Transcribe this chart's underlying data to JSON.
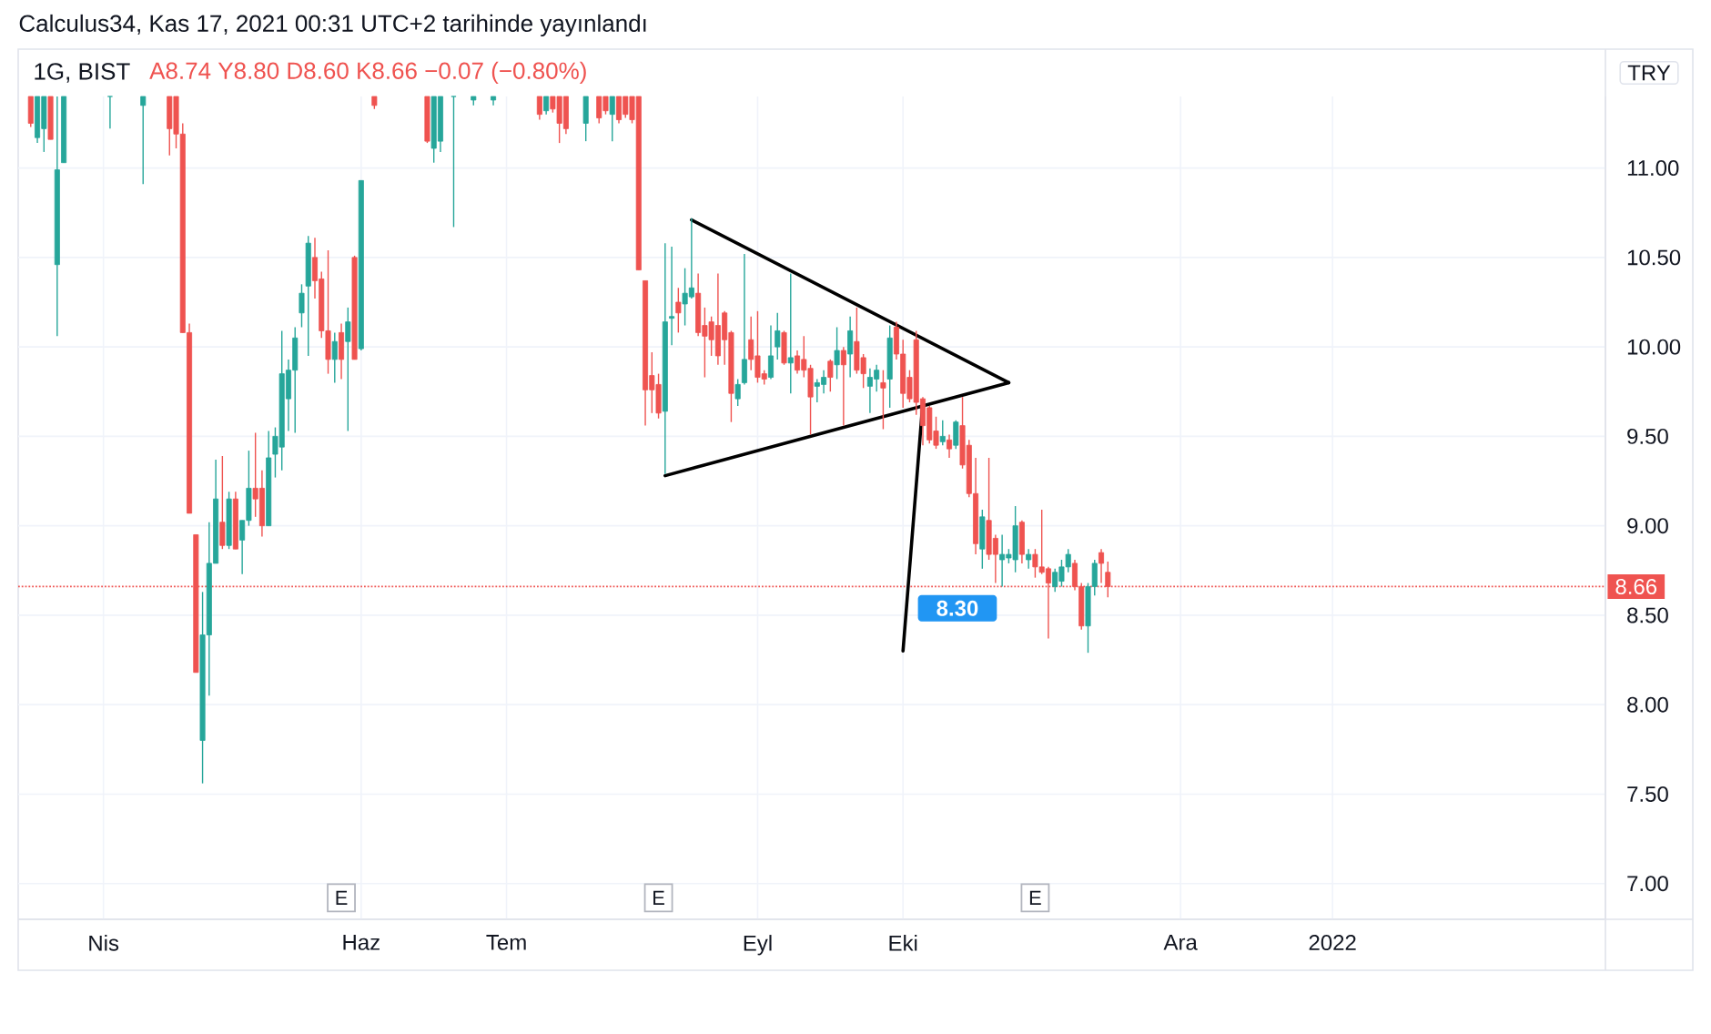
{
  "chart_data": {
    "type": "candlestick",
    "title": "1G, BIST",
    "subtitle": "A8.74 Y8.80 D8.60 K8.66 −0.07 (−0.80%)",
    "ylabel": "TRY",
    "annotations": [
      "Calculus34, Kas 17, 2021 00:31 UTC+2 tarihinde yayınlandı"
    ],
    "categories": [
      null,
      null,
      null,
      null,
      null,
      null,
      null,
      null,
      null,
      null,
      null,
      "Nis",
      null,
      null,
      null,
      null,
      null,
      null,
      null,
      null,
      null,
      null,
      null,
      null,
      null,
      null,
      null,
      null,
      null,
      null,
      null,
      null,
      null,
      null,
      null,
      null,
      null,
      null,
      null,
      null,
      null,
      null,
      null,
      null,
      null,
      null,
      null,
      null,
      null,
      null,
      "Haz",
      null,
      null,
      null,
      null,
      null,
      null,
      null,
      null,
      null,
      null,
      null,
      null,
      null,
      null,
      null,
      null,
      null,
      null,
      null,
      null,
      null,
      "Tem",
      null,
      null,
      null,
      null,
      null,
      null,
      null,
      null,
      null,
      null,
      null,
      null,
      null,
      null,
      null,
      null,
      null,
      null,
      null,
      null,
      null,
      null,
      null,
      null,
      null,
      null,
      null,
      null,
      null,
      null,
      null,
      null,
      null,
      null,
      null,
      null,
      null,
      "Eyl",
      null,
      null,
      null,
      null,
      null,
      null,
      null,
      null,
      null,
      null,
      null,
      null,
      null,
      null,
      null,
      null,
      null,
      null,
      null,
      null,
      null,
      "Eki",
      null,
      null,
      null,
      null,
      null,
      null,
      null,
      null,
      null,
      null,
      null,
      null,
      null,
      null,
      null,
      null,
      null,
      null,
      null,
      null,
      null,
      null,
      null,
      null,
      null,
      null,
      null,
      null,
      null,
      null,
      null,
      null,
      null,
      null,
      null,
      null,
      null,
      null,
      null,
      null,
      null,
      "Ara",
      null,
      null,
      null,
      null,
      null,
      null,
      null,
      null,
      null,
      null,
      null,
      null,
      null,
      null,
      null,
      null,
      null,
      null,
      null,
      null,
      null,
      null,
      "2022",
      null,
      null,
      null,
      null,
      null,
      null,
      null,
      null,
      null,
      null,
      null,
      null,
      null,
      null,
      null,
      null,
      null,
      null,
      null,
      null,
      null,
      null,
      null,
      null,
      null,
      null,
      null,
      null,
      null,
      null,
      null,
      null,
      null,
      null,
      null,
      null,
      null,
      null,
      null,
      null,
      null
    ],
    "ohlc": [
      [
        11.4,
        11.4,
        11.23,
        11.25
      ],
      [
        11.17,
        11.4,
        11.14,
        11.4
      ],
      [
        11.22,
        11.4,
        11.09,
        11.4
      ],
      [
        11.4,
        11.4,
        11.16,
        11.16
      ],
      [
        10.46,
        11.4,
        10.06,
        10.99
      ],
      [
        11.03,
        11.4,
        11.03,
        11.4
      ],
      null,
      null,
      null,
      null,
      null,
      null,
      [
        11.4,
        11.4,
        11.22,
        11.4
      ],
      null,
      null,
      null,
      null,
      [
        11.35,
        11.4,
        10.91,
        11.4
      ],
      null,
      null,
      null,
      [
        11.4,
        11.4,
        11.07,
        11.22
      ],
      [
        11.4,
        11.4,
        11.11,
        11.19
      ],
      [
        11.19,
        11.25,
        10.08,
        10.08
      ],
      [
        10.08,
        10.13,
        9.07,
        9.07
      ],
      [
        8.95,
        8.95,
        8.18,
        8.18
      ],
      [
        7.8,
        8.63,
        7.56,
        8.39
      ],
      [
        8.39,
        9.02,
        8.05,
        8.79
      ],
      [
        8.79,
        9.37,
        8.79,
        9.15
      ],
      [
        9.02,
        9.39,
        8.87,
        8.89
      ],
      [
        8.89,
        9.19,
        8.87,
        9.15
      ],
      [
        9.15,
        9.19,
        8.87,
        8.87
      ],
      [
        8.92,
        9.03,
        8.73,
        9.03
      ],
      [
        9.03,
        9.42,
        9.0,
        9.21
      ],
      [
        9.21,
        9.52,
        9.05,
        9.15
      ],
      [
        9.21,
        9.31,
        8.94,
        9.0
      ],
      [
        9.0,
        9.53,
        9.0,
        9.38
      ],
      [
        9.4,
        9.55,
        9.27,
        9.5
      ],
      [
        9.44,
        10.09,
        9.31,
        9.85
      ],
      [
        9.71,
        9.93,
        9.53,
        9.87
      ],
      [
        9.87,
        10.11,
        9.52,
        10.05
      ],
      [
        10.19,
        10.35,
        10.11,
        10.3
      ],
      [
        10.34,
        10.62,
        9.95,
        10.58
      ],
      [
        10.5,
        10.61,
        10.27,
        10.37
      ],
      [
        10.38,
        10.42,
        10.05,
        10.09
      ],
      [
        10.09,
        10.54,
        9.85,
        9.93
      ],
      [
        9.93,
        10.08,
        9.8,
        10.03
      ],
      [
        10.08,
        10.13,
        9.82,
        9.93
      ],
      [
        10.03,
        10.22,
        9.53,
        10.14
      ],
      [
        10.5,
        10.51,
        9.93,
        9.93
      ],
      [
        9.99,
        10.93,
        9.98,
        10.93
      ],
      null,
      [
        11.4,
        11.4,
        11.33,
        11.35
      ],
      null,
      null,
      null,
      null,
      null,
      null,
      null,
      [
        11.4,
        11.4,
        11.14,
        11.15
      ],
      [
        11.11,
        11.4,
        11.03,
        11.4
      ],
      [
        11.15,
        11.4,
        11.09,
        11.4
      ],
      null,
      [
        11.4,
        11.4,
        10.67,
        11.4
      ],
      null,
      null,
      [
        11.38,
        11.4,
        11.35,
        11.4
      ],
      null,
      null,
      [
        11.38,
        11.4,
        11.35,
        11.4
      ],
      null,
      null,
      null,
      null,
      null,
      null,
      [
        11.4,
        11.4,
        11.27,
        11.3
      ],
      [
        11.32,
        11.4,
        11.3,
        11.4
      ],
      [
        11.4,
        11.4,
        11.31,
        11.33
      ],
      [
        11.4,
        11.4,
        11.14,
        11.25
      ],
      [
        11.4,
        11.4,
        11.19,
        11.22
      ],
      null,
      null,
      [
        11.25,
        11.4,
        11.15,
        11.4
      ],
      null,
      [
        11.4,
        11.4,
        11.25,
        11.28
      ],
      [
        11.4,
        11.4,
        11.3,
        11.32
      ],
      [
        11.3,
        11.4,
        11.15,
        11.4
      ],
      [
        11.4,
        11.4,
        11.25,
        11.27
      ],
      [
        11.4,
        11.4,
        11.28,
        11.3
      ],
      [
        11.4,
        11.4,
        11.25,
        11.27
      ],
      [
        11.4,
        11.4,
        10.43,
        10.43
      ],
      [
        10.37,
        10.37,
        9.56,
        9.76
      ],
      [
        9.84,
        9.97,
        9.63,
        9.76
      ],
      [
        9.79,
        9.85,
        9.6,
        9.63
      ],
      [
        9.64,
        10.58,
        9.29,
        10.14
      ],
      [
        10.16,
        10.56,
        10.01,
        10.17
      ],
      [
        10.25,
        10.33,
        10.08,
        10.19
      ],
      [
        10.24,
        10.44,
        10.12,
        10.3
      ],
      [
        10.28,
        10.72,
        10.27,
        10.33
      ],
      [
        10.3,
        10.41,
        10.06,
        10.08
      ],
      [
        10.12,
        10.22,
        9.83,
        10.06
      ],
      [
        10.14,
        10.17,
        9.95,
        10.04
      ],
      [
        10.12,
        10.41,
        9.9,
        9.95
      ],
      [
        10.19,
        10.2,
        9.9,
        10.04
      ],
      [
        10.08,
        10.09,
        9.58,
        9.74
      ],
      [
        9.71,
        9.82,
        9.67,
        9.79
      ],
      [
        9.8,
        10.52,
        9.79,
        9.93
      ],
      [
        10.04,
        10.17,
        9.87,
        9.93
      ],
      [
        9.95,
        10.2,
        9.8,
        9.83
      ],
      [
        9.85,
        9.87,
        9.79,
        9.82
      ],
      [
        9.83,
        10.12,
        9.82,
        9.95
      ],
      [
        10.0,
        10.19,
        9.93,
        10.09
      ],
      [
        10.08,
        10.09,
        9.9,
        9.91
      ],
      [
        9.91,
        10.41,
        9.74,
        9.94
      ],
      [
        9.95,
        9.98,
        9.85,
        9.87
      ],
      [
        9.93,
        10.06,
        9.83,
        9.87
      ],
      [
        9.88,
        9.9,
        9.51,
        9.72
      ],
      [
        9.78,
        9.82,
        9.69,
        9.8
      ],
      [
        9.79,
        9.87,
        9.74,
        9.83
      ],
      [
        9.92,
        9.93,
        9.75,
        9.83
      ],
      [
        9.9,
        10.11,
        9.82,
        9.98
      ],
      [
        9.98,
        10.0,
        9.56,
        9.9
      ],
      [
        9.96,
        10.17,
        9.83,
        10.09
      ],
      [
        10.03,
        10.22,
        9.85,
        9.87
      ],
      [
        9.94,
        9.96,
        9.77,
        9.85
      ],
      [
        9.78,
        9.88,
        9.63,
        9.83
      ],
      [
        9.82,
        9.9,
        9.75,
        9.87
      ],
      [
        9.8,
        9.87,
        9.54,
        9.77
      ],
      [
        9.82,
        10.12,
        9.66,
        10.05
      ],
      [
        10.11,
        10.14,
        9.93,
        9.96
      ],
      [
        9.96,
        10.04,
        9.66,
        9.74
      ],
      [
        9.83,
        9.87,
        9.69,
        9.71
      ],
      [
        10.04,
        10.09,
        9.62,
        9.69
      ],
      [
        9.71,
        9.72,
        9.45,
        9.56
      ],
      [
        9.66,
        9.67,
        9.46,
        9.48
      ],
      [
        9.53,
        9.61,
        9.43,
        9.45
      ],
      [
        9.47,
        9.59,
        9.45,
        9.5
      ],
      [
        9.48,
        9.51,
        9.38,
        9.43
      ],
      [
        9.45,
        9.59,
        9.43,
        9.58
      ],
      [
        9.56,
        9.72,
        9.32,
        9.34
      ],
      [
        9.45,
        9.48,
        9.16,
        9.18
      ],
      [
        9.18,
        9.38,
        8.84,
        8.9
      ],
      [
        8.87,
        9.09,
        8.76,
        9.05
      ],
      [
        9.03,
        9.38,
        8.81,
        8.84
      ],
      [
        8.93,
        8.95,
        8.68,
        8.84
      ],
      [
        8.81,
        8.95,
        8.66,
        8.84
      ],
      [
        8.82,
        8.87,
        8.79,
        8.84
      ],
      [
        8.81,
        9.11,
        8.74,
        9.0
      ],
      [
        9.02,
        9.03,
        8.79,
        8.84
      ],
      [
        8.81,
        8.87,
        8.76,
        8.84
      ],
      [
        8.84,
        8.87,
        8.71,
        8.77
      ],
      [
        8.77,
        9.09,
        8.73,
        8.74
      ],
      [
        8.76,
        8.77,
        8.37,
        8.68
      ],
      [
        8.66,
        8.76,
        8.63,
        8.74
      ],
      [
        8.69,
        8.81,
        8.66,
        8.77
      ],
      [
        8.77,
        8.87,
        8.74,
        8.84
      ],
      [
        8.79,
        8.81,
        8.64,
        8.66
      ],
      [
        8.66,
        8.68,
        8.42,
        8.44
      ],
      [
        8.44,
        8.68,
        8.29,
        8.66
      ],
      [
        8.66,
        8.81,
        8.61,
        8.79
      ],
      [
        8.85,
        8.87,
        8.68,
        8.79
      ],
      [
        8.74,
        8.8,
        8.6,
        8.66
      ],
      null,
      null,
      null,
      null,
      null,
      null,
      null,
      null,
      null,
      null,
      null,
      null,
      null,
      null,
      null,
      null,
      null,
      null,
      null,
      null,
      null,
      null,
      null,
      null,
      null,
      null,
      null,
      null,
      null,
      null,
      null,
      null,
      null,
      null,
      null,
      null,
      null,
      null,
      null,
      null,
      null,
      null,
      null,
      null,
      null,
      null,
      null,
      null,
      null,
      null,
      null,
      null,
      null,
      null,
      null,
      null,
      null,
      null,
      null,
      null,
      null,
      null,
      null,
      null,
      null,
      null,
      null,
      null,
      null,
      null,
      null,
      null,
      null,
      null,
      null
    ],
    "colors": [
      "#ef5350",
      "#26a69a",
      "#26a69a",
      "#ef5350",
      "#26a69a",
      "#26a69a",
      null,
      null,
      null,
      null,
      null,
      null,
      "#26a69a",
      null,
      null,
      null,
      null,
      "#26a69a",
      null,
      null,
      null,
      "#ef5350",
      "#ef5350",
      "#ef5350",
      "#ef5350",
      "#ef5350",
      "#26a69a",
      "#26a69a",
      "#26a69a",
      "#ef5350",
      "#26a69a",
      "#ef5350",
      "#26a69a",
      "#26a69a",
      "#ef5350",
      "#ef5350",
      "#26a69a",
      "#26a69a",
      "#26a69a",
      "#26a69a",
      "#26a69a",
      "#26a69a",
      "#26a69a",
      "#ef5350",
      "#ef5350",
      "#ef5350",
      "#26a69a",
      "#ef5350",
      "#26a69a",
      "#ef5350",
      "#26a69a",
      null,
      "#ef5350",
      null,
      null,
      null,
      null,
      null,
      null,
      null,
      "#ef5350",
      "#26a69a",
      "#26a69a",
      null,
      "#26a69a",
      null,
      null,
      "#26a69a",
      null,
      null,
      "#26a69a",
      null,
      null,
      null,
      null,
      null,
      null,
      "#ef5350",
      "#26a69a",
      "#ef5350",
      "#ef5350",
      "#ef5350",
      null,
      null,
      "#26a69a",
      null,
      "#ef5350",
      "#ef5350",
      "#26a69a",
      "#ef5350",
      "#ef5350",
      "#ef5350",
      "#ef5350",
      "#ef5350",
      "#ef5350",
      "#ef5350",
      "#26a69a",
      "#26a69a",
      "#ef5350",
      "#26a69a",
      "#26a69a",
      "#ef5350",
      "#ef5350",
      "#ef5350",
      "#ef5350",
      "#ef5350",
      "#ef5350",
      "#26a69a",
      "#26a69a",
      "#ef5350",
      "#ef5350",
      "#ef5350",
      "#26a69a",
      "#26a69a",
      "#ef5350",
      "#26a69a",
      "#ef5350",
      "#ef5350",
      "#ef5350",
      "#26a69a",
      "#26a69a",
      "#ef5350",
      "#26a69a",
      "#ef5350",
      "#26a69a",
      "#ef5350",
      "#ef5350",
      "#26a69a",
      "#26a69a",
      "#ef5350",
      "#26a69a",
      "#ef5350",
      "#ef5350",
      "#ef5350",
      "#ef5350",
      "#ef5350",
      "#ef5350",
      "#ef5350",
      "#26a69a",
      "#ef5350",
      "#26a69a",
      "#ef5350",
      "#ef5350",
      "#ef5350",
      "#26a69a",
      "#ef5350",
      "#ef5350",
      "#26a69a",
      "#26a69a",
      "#26a69a",
      "#ef5350",
      "#26a69a",
      "#ef5350",
      "#ef5350",
      "#ef5350",
      "#26a69a",
      "#26a69a",
      "#26a69a",
      "#ef5350",
      "#ef5350",
      "#26a69a",
      "#26a69a",
      "#ef5350",
      "#ef5350",
      null,
      null,
      null,
      null,
      null,
      null,
      null,
      null,
      null,
      null,
      null,
      null,
      null,
      null,
      null,
      null,
      null,
      null,
      null,
      null,
      null,
      null,
      null,
      null,
      null,
      null,
      null,
      null,
      null,
      null,
      null,
      null,
      null,
      null,
      null,
      null,
      null,
      null,
      null,
      null,
      null,
      null,
      null,
      null,
      null,
      null,
      null,
      null,
      null,
      null,
      null,
      null,
      null,
      null,
      null,
      null,
      null,
      null,
      null,
      null,
      null,
      null,
      null,
      null,
      null,
      null,
      null,
      null,
      null,
      null,
      null,
      null,
      null,
      null,
      null
    ],
    "series": [
      {
        "type": "line",
        "color": "#000000",
        "values": [
          null,
          null,
          null,
          null,
          null,
          null,
          null,
          null,
          null,
          null,
          null,
          null,
          null,
          null,
          null,
          null,
          null,
          null,
          null,
          null,
          null,
          null,
          null,
          null,
          null,
          null,
          null,
          null,
          null,
          null,
          null,
          null,
          null,
          null,
          null,
          null,
          null,
          null,
          null,
          null,
          null,
          null,
          null,
          null,
          null,
          null,
          null,
          null,
          null,
          null,
          null,
          null,
          null,
          null,
          null,
          null,
          null,
          null,
          null,
          null,
          null,
          null,
          null,
          null,
          null,
          null,
          null,
          null,
          null,
          null,
          null,
          null,
          null,
          null,
          null,
          null,
          null,
          null,
          null,
          null,
          null,
          null,
          null,
          null,
          null,
          null,
          null,
          null,
          null,
          null,
          null,
          null,
          null,
          null,
          null,
          null,
          null,
          null,
          null,
          null,
          10.71,
          null,
          null,
          null,
          null,
          null,
          null,
          null,
          null,
          null,
          null,
          null,
          null,
          null,
          null,
          null,
          null,
          null,
          null,
          null,
          null,
          null,
          null,
          null,
          null,
          null,
          null,
          null,
          null,
          null,
          null,
          null,
          null,
          null,
          null,
          null,
          null,
          null,
          null,
          null,
          null,
          null,
          null,
          null,
          null,
          null,
          null,
          null,
          9.8,
          null,
          null,
          null,
          null,
          null,
          null,
          null,
          null,
          null,
          null,
          null,
          null,
          null,
          null,
          null,
          null,
          null,
          null,
          null,
          null,
          null,
          null,
          null,
          null,
          null,
          null,
          null,
          null,
          null,
          null,
          null,
          null,
          null,
          null,
          null,
          null,
          null,
          null,
          null,
          null,
          null,
          null,
          null,
          null,
          null,
          null,
          null,
          null,
          null,
          null,
          null,
          null,
          null,
          null,
          null,
          null,
          null,
          null,
          null,
          null,
          null,
          null,
          null,
          null,
          null,
          null,
          null,
          null,
          null,
          null,
          null,
          null,
          null,
          null,
          null,
          null,
          null,
          null,
          null,
          null,
          null,
          null,
          null,
          null,
          null,
          null,
          null,
          null,
          null,
          null
        ]
      },
      {
        "type": "line",
        "color": "#000000",
        "values": [
          null,
          null,
          null,
          null,
          null,
          null,
          null,
          null,
          null,
          null,
          null,
          null,
          null,
          null,
          null,
          null,
          null,
          null,
          null,
          null,
          null,
          null,
          null,
          null,
          null,
          null,
          null,
          null,
          null,
          null,
          null,
          null,
          null,
          null,
          null,
          null,
          null,
          null,
          null,
          null,
          null,
          null,
          null,
          null,
          null,
          null,
          null,
          null,
          null,
          null,
          null,
          null,
          null,
          null,
          null,
          null,
          null,
          null,
          null,
          null,
          null,
          null,
          null,
          null,
          null,
          null,
          null,
          null,
          null,
          null,
          null,
          null,
          null,
          null,
          null,
          null,
          null,
          null,
          null,
          null,
          null,
          null,
          null,
          null,
          null,
          null,
          null,
          null,
          null,
          null,
          null,
          null,
          null,
          null,
          null,
          null,
          9.28,
          null,
          null,
          null,
          null,
          null,
          null,
          null,
          null,
          null,
          null,
          null,
          null,
          null,
          null,
          null,
          null,
          null,
          null,
          null,
          null,
          null,
          null,
          null,
          null,
          null,
          null,
          null,
          null,
          null,
          null,
          null,
          null,
          null,
          null,
          null,
          null,
          null,
          null,
          null,
          null,
          null,
          null,
          null,
          null,
          null,
          null,
          null,
          null,
          null,
          null,
          null,
          9.8,
          null,
          null,
          null,
          null,
          null,
          null,
          null,
          null,
          null,
          null,
          null,
          null,
          null,
          null,
          null,
          null,
          null,
          null,
          null,
          null,
          null,
          null,
          null,
          null,
          null,
          null,
          null,
          null,
          null,
          null,
          null,
          null,
          null,
          null,
          null,
          null,
          null,
          null,
          null,
          null,
          null,
          null,
          null,
          null,
          null,
          null,
          null,
          null,
          null,
          null,
          null,
          null,
          null,
          null,
          null,
          null,
          null,
          null,
          null,
          null,
          null,
          null,
          null,
          null,
          null,
          null,
          null,
          null,
          null,
          null,
          null,
          null,
          null,
          null,
          null,
          null,
          null,
          null,
          null,
          null,
          null,
          null,
          null,
          null,
          null,
          null,
          null,
          null,
          null,
          null
        ]
      },
      {
        "type": "line",
        "color": "#000000",
        "values": [
          null,
          null,
          null,
          null,
          null,
          null,
          null,
          null,
          null,
          null,
          null,
          null,
          null,
          null,
          null,
          null,
          null,
          null,
          null,
          null,
          null,
          null,
          null,
          null,
          null,
          null,
          null,
          null,
          null,
          null,
          null,
          null,
          null,
          null,
          null,
          null,
          null,
          null,
          null,
          null,
          null,
          null,
          null,
          null,
          null,
          null,
          null,
          null,
          null,
          null,
          null,
          null,
          null,
          null,
          null,
          null,
          null,
          null,
          null,
          null,
          null,
          null,
          null,
          null,
          null,
          null,
          null,
          null,
          null,
          null,
          null,
          null,
          null,
          null,
          null,
          null,
          null,
          null,
          null,
          null,
          null,
          null,
          null,
          null,
          null,
          null,
          null,
          null,
          null,
          null,
          null,
          null,
          null,
          null,
          null,
          null,
          null,
          null,
          null,
          null,
          null,
          null,
          null,
          null,
          null,
          null,
          null,
          null,
          null,
          null,
          null,
          null,
          null,
          null,
          null,
          null,
          null,
          null,
          null,
          null,
          null,
          null,
          null,
          null,
          null,
          null,
          null,
          null,
          null,
          null,
          null,
          null,
          8.3,
          null,
          null,
          9.69,
          null,
          null,
          null,
          null,
          null,
          null,
          null,
          null,
          null,
          null,
          null,
          null,
          null,
          null,
          null,
          null,
          null,
          null,
          null,
          null,
          null,
          null,
          null,
          null,
          null,
          null,
          null,
          null,
          null,
          null,
          null,
          null,
          null,
          null,
          null,
          null,
          null,
          null,
          null,
          null,
          null,
          null,
          null,
          null,
          null,
          null,
          null,
          null,
          null,
          null,
          null,
          null,
          null,
          null,
          null,
          null,
          null,
          null,
          null,
          null,
          null,
          null,
          null,
          null,
          null,
          null,
          null,
          null,
          null,
          null,
          null,
          null,
          null,
          null,
          null,
          null,
          null,
          null,
          null,
          null,
          null,
          null,
          null,
          null,
          null,
          null,
          null,
          null,
          null,
          null,
          null,
          null,
          null,
          null,
          null,
          null,
          null,
          null,
          null,
          null,
          null,
          null,
          null
        ],
        "value_labels": [
          null,
          null,
          null,
          null,
          null,
          null,
          null,
          null,
          null,
          null,
          null,
          null,
          null,
          null,
          null,
          null,
          null,
          null,
          null,
          null,
          null,
          null,
          null,
          null,
          null,
          null,
          null,
          null,
          null,
          null,
          null,
          null,
          null,
          null,
          null,
          null,
          null,
          null,
          null,
          null,
          null,
          null,
          null,
          null,
          null,
          null,
          null,
          null,
          null,
          null,
          null,
          null,
          null,
          null,
          null,
          null,
          null,
          null,
          null,
          null,
          null,
          null,
          null,
          null,
          null,
          null,
          null,
          null,
          null,
          null,
          null,
          null,
          null,
          null,
          null,
          null,
          null,
          null,
          null,
          null,
          null,
          null,
          null,
          null,
          null,
          null,
          null,
          null,
          null,
          null,
          null,
          null,
          null,
          null,
          null,
          null,
          null,
          null,
          null,
          null,
          null,
          null,
          null,
          null,
          null,
          null,
          null,
          null,
          null,
          null,
          null,
          null,
          null,
          null,
          null,
          null,
          null,
          null,
          null,
          null,
          null,
          null,
          null,
          null,
          null,
          null,
          null,
          null,
          null,
          null,
          null,
          null,
          "8.30",
          null,
          null,
          null,
          null,
          null,
          null,
          null,
          null,
          null,
          null,
          null,
          null,
          null,
          null,
          null,
          null,
          null,
          null,
          null,
          null,
          null,
          null,
          null,
          null,
          null,
          null,
          null,
          null,
          null,
          null,
          null,
          null,
          null,
          null,
          null,
          null,
          null,
          null,
          null,
          null,
          null,
          null,
          null,
          null,
          null,
          null,
          null,
          null,
          null,
          null,
          null,
          null,
          null,
          null,
          null,
          null,
          null,
          null,
          null,
          null,
          null,
          null,
          null,
          null,
          null,
          null,
          null,
          null,
          null,
          null,
          null,
          null,
          null,
          null,
          null,
          null,
          null,
          null,
          null,
          null,
          null,
          null,
          null,
          null,
          null,
          null,
          null,
          null,
          null,
          null,
          null,
          null,
          null,
          null,
          null,
          null,
          null,
          null,
          null,
          null,
          null,
          null,
          null,
          null,
          null,
          null
        ]
      },
      {
        "type": "scatter",
        "name": "E",
        "color": "#b2b5be",
        "marker": "square",
        "values": [
          null,
          null,
          null,
          null,
          null,
          null,
          null,
          null,
          null,
          null,
          null,
          null,
          null,
          null,
          null,
          null,
          null,
          null,
          null,
          null,
          null,
          null,
          null,
          null,
          null,
          null,
          null,
          null,
          null,
          null,
          null,
          null,
          null,
          null,
          null,
          null,
          null,
          null,
          null,
          null,
          null,
          null,
          null,
          null,
          null,
          null,
          null,
          6.92,
          null,
          null,
          null,
          null,
          null,
          null,
          null,
          null,
          null,
          null,
          null,
          null,
          null,
          null,
          null,
          null,
          null,
          null,
          null,
          null,
          null,
          null,
          null,
          null,
          null,
          null,
          null,
          null,
          null,
          null,
          null,
          null,
          null,
          null,
          null,
          null,
          null,
          null,
          null,
          null,
          null,
          null,
          null,
          null,
          null,
          null,
          null,
          6.92,
          null,
          null,
          null,
          null,
          null,
          null,
          null,
          null,
          null,
          null,
          null,
          null,
          null,
          null,
          null,
          null,
          null,
          null,
          null,
          null,
          null,
          null,
          null,
          null,
          null,
          null,
          null,
          null,
          null,
          null,
          null,
          null,
          null,
          null,
          null,
          null,
          null,
          null,
          null,
          null,
          null,
          null,
          null,
          null,
          null,
          null,
          null,
          null,
          null,
          null,
          null,
          null,
          null,
          null,
          null,
          null,
          6.92,
          null,
          null,
          null,
          null,
          null,
          null,
          null,
          null,
          null,
          null,
          null,
          null,
          null,
          null,
          null,
          null,
          null,
          null,
          null,
          null,
          null,
          null,
          null,
          null,
          null,
          null,
          null,
          null,
          null,
          null,
          null,
          null,
          null,
          null,
          null,
          null,
          null,
          null,
          null,
          null,
          null,
          null,
          null,
          null,
          null,
          null,
          null,
          null,
          null,
          null,
          null,
          null,
          null,
          null,
          null,
          null,
          null,
          null,
          null,
          null,
          null,
          null,
          null,
          null,
          null,
          null,
          null,
          null,
          null,
          null,
          null,
          null,
          null,
          null,
          null,
          null,
          null,
          null,
          null,
          null,
          null,
          null,
          null,
          null,
          null,
          null
        ]
      }
    ],
    "ref_lines": [
      {
        "axis": "y",
        "value": 8.66,
        "label": "8.66",
        "color": "#ef5350",
        "line_style": "dotted"
      }
    ],
    "ylim": [
      6.8,
      11.4
    ],
    "yticks": [
      {
        "value": 7,
        "label": "7.00"
      },
      {
        "value": 7.5,
        "label": "7.50"
      },
      {
        "value": 8,
        "label": "8.00"
      },
      {
        "value": 8.5,
        "label": "8.50"
      },
      {
        "value": 9,
        "label": "9.00"
      },
      {
        "value": 9.5,
        "label": "9.50"
      },
      {
        "value": 10,
        "label": "10.00"
      },
      {
        "value": 10.5,
        "label": "10.50"
      },
      {
        "value": 11,
        "label": "11.00"
      }
    ],
    "grid": true
  }
}
